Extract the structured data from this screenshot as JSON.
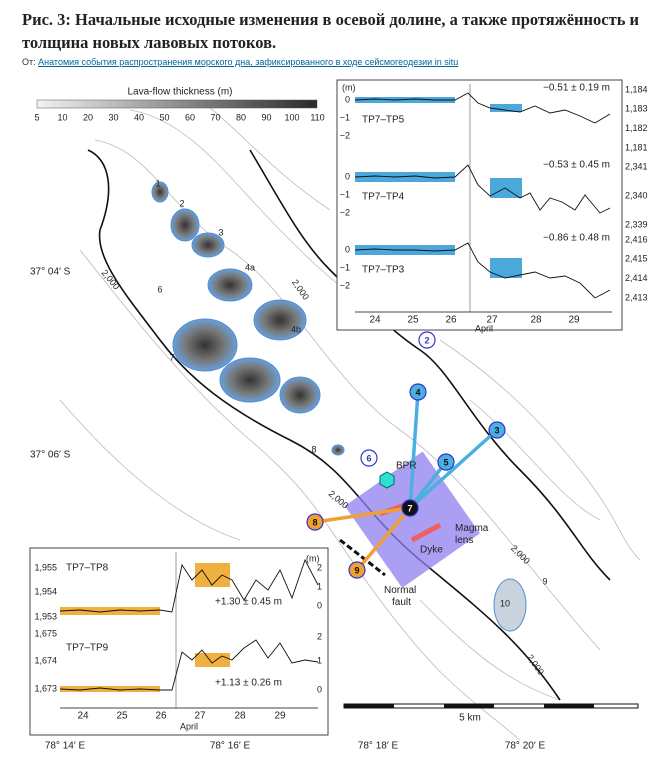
{
  "header": {
    "title": "Рис. 3: Начальные исходные изменения в осевой долине, а также протяжённость и толщина новых лавовых потоков.",
    "source_prefix": "От:",
    "source_link": "Анатомия события распространения морского дна, зафиксированного в ходе сейсмогеодезии in situ"
  },
  "colorbar": {
    "title": "Lava-flow thickness (m)",
    "ticks": [
      "5",
      "10",
      "20",
      "30",
      "40",
      "50",
      "60",
      "70",
      "80",
      "90",
      "100",
      "110"
    ]
  },
  "map": {
    "lat_labels": [
      "37° 04′ S",
      "37° 06′ S"
    ],
    "lon_labels": [
      "78° 14′ E",
      "78° 16′ E",
      "78° 18′ E",
      "78° 20′ E"
    ],
    "flow_labels": [
      "1",
      "2",
      "3",
      "4a",
      "4b",
      "6",
      "7",
      "8",
      "9",
      "10"
    ],
    "stations": [
      "2",
      "3",
      "4",
      "5",
      "6",
      "7",
      "8",
      "9"
    ],
    "depth_labels": [
      "2,000",
      "2,000",
      "2,000",
      "2,000",
      "2,000"
    ],
    "features": [
      "BPR",
      "Magma lens",
      "Dyke",
      "Normal fault"
    ],
    "scale": "5 km"
  },
  "inset_top": {
    "unit": "(m)",
    "panels": [
      {
        "name": "TP7–TP5",
        "result": "−0.51 ± 0.19 m",
        "left_ticks": [
          "0",
          "−1",
          "−2"
        ],
        "right_ticks": [
          "1,184",
          "1,183",
          "1,182",
          "1,181"
        ]
      },
      {
        "name": "TP7–TP4",
        "result": "−0.53 ± 0.45 m",
        "left_ticks": [
          "0",
          "−1",
          "−2"
        ],
        "right_ticks": [
          "2,341",
          "2,340",
          "2,339"
        ]
      },
      {
        "name": "TP7–TP3",
        "result": "−0.86 ± 0.48 m",
        "left_ticks": [
          "0",
          "−1",
          "−2"
        ],
        "right_ticks": [
          "2,416",
          "2,415",
          "2,414",
          "2,413"
        ]
      }
    ],
    "x_ticks": [
      "24",
      "25",
      "26",
      "27",
      "28",
      "29"
    ],
    "month": "April"
  },
  "inset_bottom": {
    "unit": "(m)",
    "panels": [
      {
        "name": "TP7–TP8",
        "result": "+1.30 ± 0.45 m",
        "left_ticks": [
          "1,955",
          "1,954",
          "1,953"
        ],
        "right_ticks": [
          "2",
          "1",
          "0"
        ]
      },
      {
        "name": "TP7–TP9",
        "result": "+1.13 ± 0.26 m",
        "left_ticks": [
          "1,675",
          "1,674",
          "1,673"
        ],
        "right_ticks": [
          "2",
          "1",
          "0"
        ]
      }
    ],
    "x_ticks": [
      "24",
      "25",
      "26",
      "27",
      "28",
      "29"
    ],
    "month": "April"
  }
}
